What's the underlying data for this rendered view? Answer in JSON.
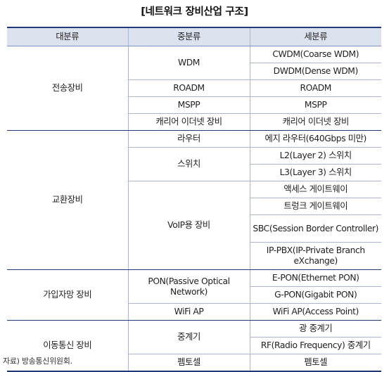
{
  "title": "[네트워크 장비산업 구조]",
  "headers": {
    "major": "대분류",
    "middle": "중분류",
    "minor": "세분류"
  },
  "groups": {
    "transmission": {
      "major": "전송장비",
      "wdm": "WDM",
      "cwdm": "CWDM(Coarse WDM)",
      "dwdm": "DWDM(Dense WDM)",
      "roadm_mid": "ROADM",
      "roadm_sub": "ROADM",
      "mspp_mid": "MSPP",
      "mspp_sub": "MSPP",
      "carrier_mid": "캐리어 이더넷 장비",
      "carrier_sub": "캐리어 이더넷 장비"
    },
    "switching": {
      "major": "교환장비",
      "router": "라우터",
      "edge_router": "에지 라우터(640Gbps 미만)",
      "switch": "스위치",
      "l2": "L2(Layer 2) 스위치",
      "l3": "L3(Layer 3) 스위치",
      "voip": "VoIP용 장비",
      "access_gw": "액세스 게이트웨이",
      "trunk_gw": "트렁크 게이트웨이",
      "sbc": "SBC(Session Border Controller)",
      "ippbx": "IP-PBX(IP-Private Branch eXchange)"
    },
    "subscriber": {
      "major": "가입자망 장비",
      "pon": "PON(Passive Optical Network)",
      "epon": "E-PON(Ethernet PON)",
      "gpon": "G-PON(Gigabit PON)",
      "wifi_mid": "WiFi AP",
      "wifi_sub": "WiFi AP(Access Point)"
    },
    "mobile": {
      "major": "이동통신 장비",
      "repeater": "중계기",
      "optical_rep": "광 중계기",
      "rf_rep": "RF(Radio Frequency) 중계기",
      "femto_mid": "펨토셀",
      "femto_sub": "펨토셀"
    }
  },
  "source_note": "자료) 방송통신위원회."
}
